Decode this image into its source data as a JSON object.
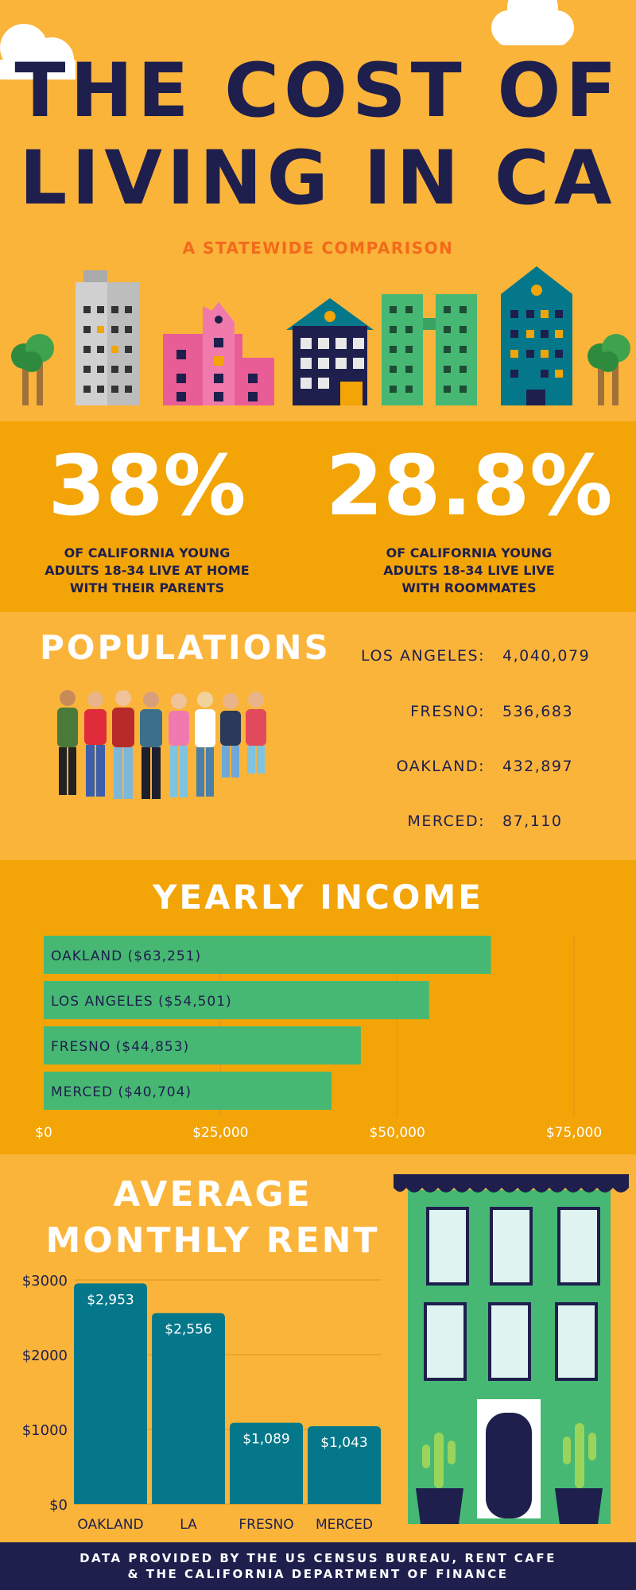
{
  "header": {
    "title_line1": "THE COST OF",
    "title_line2": "LIVING IN CA",
    "subtitle": "A STATEWIDE COMPARISON"
  },
  "stats": [
    {
      "value": "38%",
      "line1": "OF CALIFORNIA YOUNG",
      "line2": "ADULTS 18-34 LIVE AT HOME",
      "line3": "WITH THEIR PARENTS"
    },
    {
      "value": "28.8%",
      "line1": "OF CALIFORNIA YOUNG",
      "line2": "ADULTS 18-34 LIVE LIVE",
      "line3": "WITH ROOMMATES"
    }
  ],
  "populations": {
    "title": "POPULATIONS",
    "rows": [
      {
        "city": "LOS ANGELES:",
        "value": "4,040,079"
      },
      {
        "city": "FRESNO:",
        "value": "536,683"
      },
      {
        "city": "OAKLAND:",
        "value": "432,897"
      },
      {
        "city": "MERCED:",
        "value": "87,110"
      }
    ]
  },
  "colors": {
    "background": "#fbb43a",
    "band": "#f3a407",
    "navy": "#1e1f4d",
    "orange_text": "#f26a1b",
    "income_bar": "#46b873",
    "rent_bar": "#04788a"
  },
  "chart_data": [
    {
      "type": "bar",
      "orientation": "horizontal",
      "title": "YEARLY INCOME",
      "categories": [
        "OAKLAND ($63,251)",
        "LOS ANGELES ($54,501)",
        "FRESNO ($44,853)",
        "MERCED ($40,704)"
      ],
      "values": [
        63251,
        54501,
        44853,
        40704
      ],
      "xlim": [
        0,
        75000
      ],
      "xticks": [
        "$0",
        "$25,000",
        "$50,000",
        "$75,000"
      ],
      "xtick_values": [
        0,
        25000,
        50000,
        75000
      ],
      "grid": true
    },
    {
      "type": "bar",
      "orientation": "vertical",
      "title_line1": "AVERAGE",
      "title_line2": "MONTHLY RENT",
      "categories": [
        "OAKLAND",
        "LA",
        "FRESNO",
        "MERCED"
      ],
      "values": [
        2953,
        2556,
        1089,
        1043
      ],
      "data_labels": [
        "$2,953",
        "$2,556",
        "$1,089",
        "$1,043"
      ],
      "ylim": [
        0,
        3000
      ],
      "yticks": [
        "$0",
        "$1000",
        "$2000",
        "$3000"
      ],
      "ytick_values": [
        0,
        1000,
        2000,
        3000
      ],
      "grid": true
    }
  ],
  "footer": {
    "line1": "DATA PROVIDED BY THE US CENSUS BUREAU, RENT CAFE",
    "line2": "& THE CALIFORNIA DEPARTMENT OF FINANCE"
  }
}
